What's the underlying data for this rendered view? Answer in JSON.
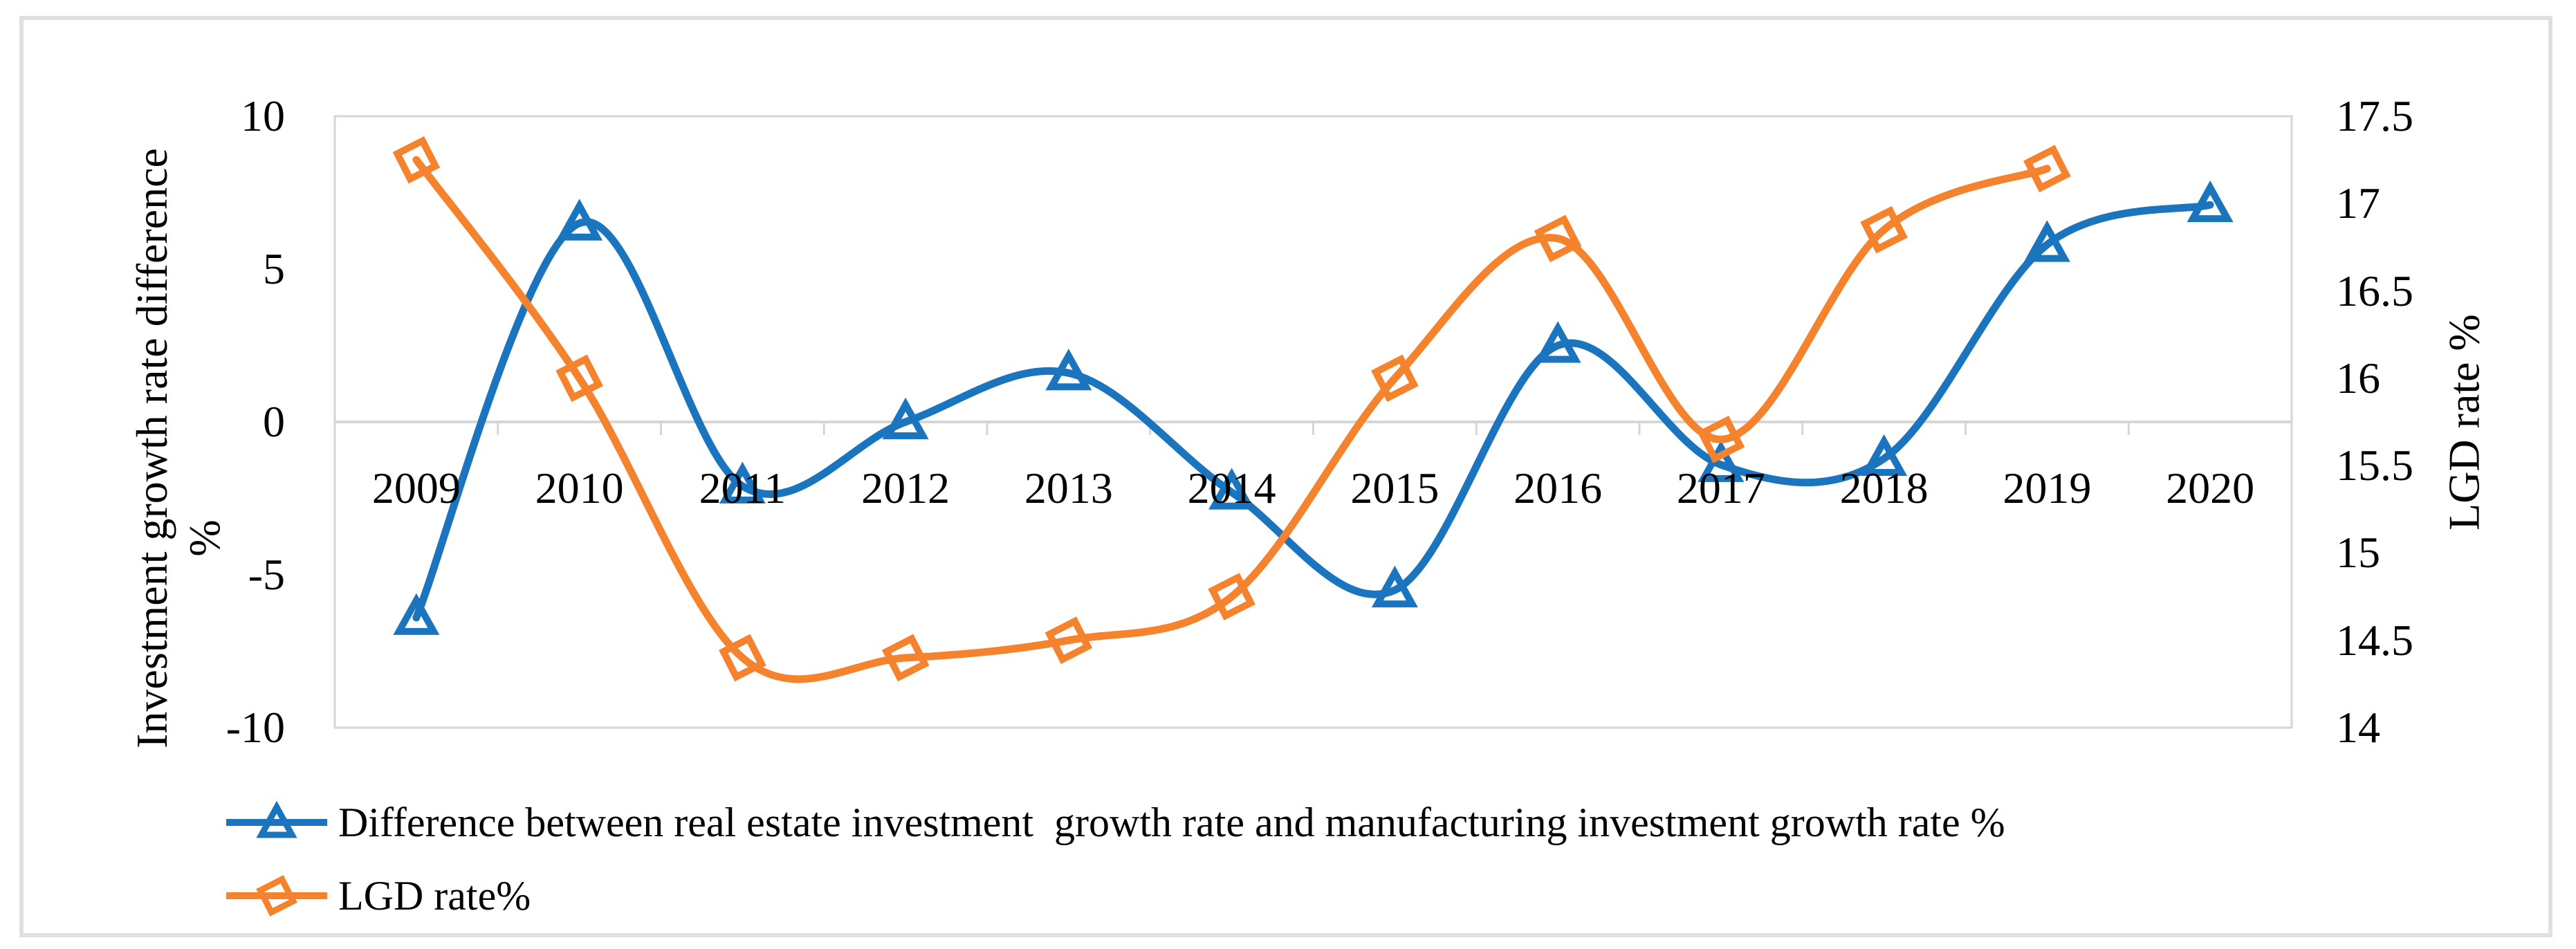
{
  "figure": {
    "border_color": "#e0e0e0",
    "background": "#ffffff"
  },
  "axes": {
    "x": {
      "categories": [
        "2009",
        "2010",
        "2011",
        "2012",
        "2013",
        "2014",
        "2015",
        "2016",
        "2017",
        "2018",
        "2019",
        "2020"
      ]
    },
    "left": {
      "title_line1": "Investment growth rate difference",
      "title_line2": "%",
      "tick_labels": [
        "10",
        "5",
        "0",
        "-5",
        "-10"
      ],
      "tick_values": [
        10,
        5,
        0,
        -5,
        -10
      ],
      "range": [
        -10,
        10
      ]
    },
    "right": {
      "title": "LGD rate %",
      "tick_labels": [
        "17.5",
        "17",
        "16.5",
        "16",
        "15.5",
        "15",
        "14.5",
        "14"
      ],
      "tick_values": [
        17.5,
        17,
        16.5,
        16,
        15.5,
        15,
        14.5,
        14
      ],
      "range": [
        14,
        17.5
      ]
    }
  },
  "legend": {
    "items": [
      {
        "label": "Difference between real estate investment  growth rate and manufacturing investment growth rate %",
        "marker": "triangle",
        "color": "#1b75be"
      },
      {
        "label": "LGD rate%",
        "marker": "diamond",
        "color": "#f5822d"
      }
    ]
  },
  "colors": {
    "blue_series": "#1b75be",
    "orange_series": "#f5822d",
    "axis_line": "#d6d6d6",
    "text": "#000000"
  },
  "chart_data": {
    "type": "line",
    "smooth": true,
    "grid": "zero-line-only",
    "legend_position": "bottom-left",
    "categories": [
      2009,
      2010,
      2011,
      2012,
      2013,
      2014,
      2015,
      2016,
      2017,
      2018,
      2019,
      2020
    ],
    "series": [
      {
        "name": "Difference between real estate investment growth rate and manufacturing investment growth rate %",
        "axis": "left",
        "marker": "triangle",
        "color": "#1b75be",
        "values": [
          -6.4,
          6.5,
          -2.1,
          0,
          1.6,
          -2.3,
          -5.5,
          2.5,
          -1.4,
          -1.2,
          5.8,
          7.1
        ]
      },
      {
        "name": "LGD rate%",
        "axis": "right",
        "marker": "diamond",
        "color": "#f5822d",
        "values": [
          17.25,
          16.0,
          14.4,
          14.4,
          14.5,
          14.75,
          16.0,
          16.8,
          15.65,
          16.85,
          17.2,
          null
        ]
      }
    ],
    "left_ylim": [
      -10,
      10
    ],
    "right_ylim": [
      14,
      17.5
    ]
  }
}
